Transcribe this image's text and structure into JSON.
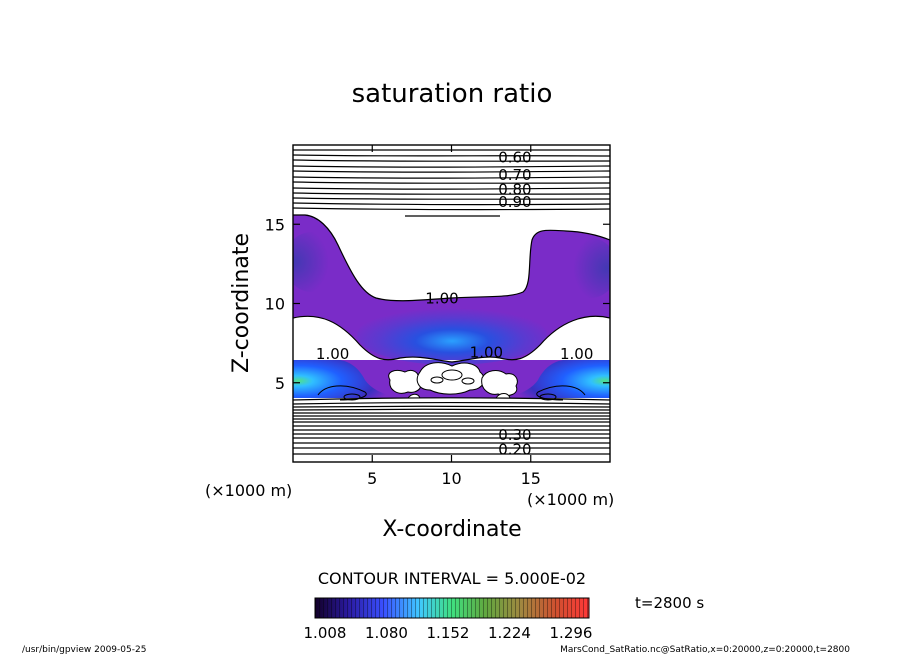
{
  "chart_data": {
    "type": "contour",
    "title": "saturation ratio",
    "xlabel": "X-coordinate",
    "ylabel": "Z-coordinate",
    "x_unit": "(×1000 m)",
    "y_unit": "(×1000 m)",
    "xlim": [
      0,
      20
    ],
    "ylim": [
      0,
      20
    ],
    "xticks": [
      5,
      10,
      15
    ],
    "yticks": [
      5,
      10,
      15
    ],
    "contour_labels": [
      {
        "text": "0.60",
        "x": 14.0,
        "z": 19.2
      },
      {
        "text": "0.70",
        "x": 14.0,
        "z": 18.1
      },
      {
        "text": "0.80",
        "x": 14.0,
        "z": 17.2
      },
      {
        "text": "0.90",
        "x": 14.0,
        "z": 16.4
      },
      {
        "text": "1.00",
        "x": 9.4,
        "z": 10.3
      },
      {
        "text": "1.00",
        "x": 2.5,
        "z": 6.8
      },
      {
        "text": "1.00",
        "x": 12.2,
        "z": 6.9
      },
      {
        "text": "1.00",
        "x": 17.9,
        "z": 6.8
      },
      {
        "text": "0.30",
        "x": 14.0,
        "z": 1.7
      },
      {
        "text": "0.20",
        "x": 14.0,
        "z": 0.8
      }
    ],
    "contour_interval": "CONTOUR INTERVAL = 5.000E-02",
    "colorbar": {
      "ticks": [
        "1.008",
        "1.080",
        "1.152",
        "1.224",
        "1.296"
      ],
      "colors": [
        "#180030",
        "#2a1890",
        "#3c3cff",
        "#3cc8ff",
        "#40e090",
        "#60b040",
        "#b09040",
        "#d05030",
        "#ff3030"
      ]
    },
    "time_label": "t=2800 s"
  },
  "footer": {
    "left": "/usr/bin/gpview   2009-05-25",
    "right": "MarsCond_SatRatio.nc@SatRatio,x=0:20000,z=0:20000,t=2800"
  }
}
